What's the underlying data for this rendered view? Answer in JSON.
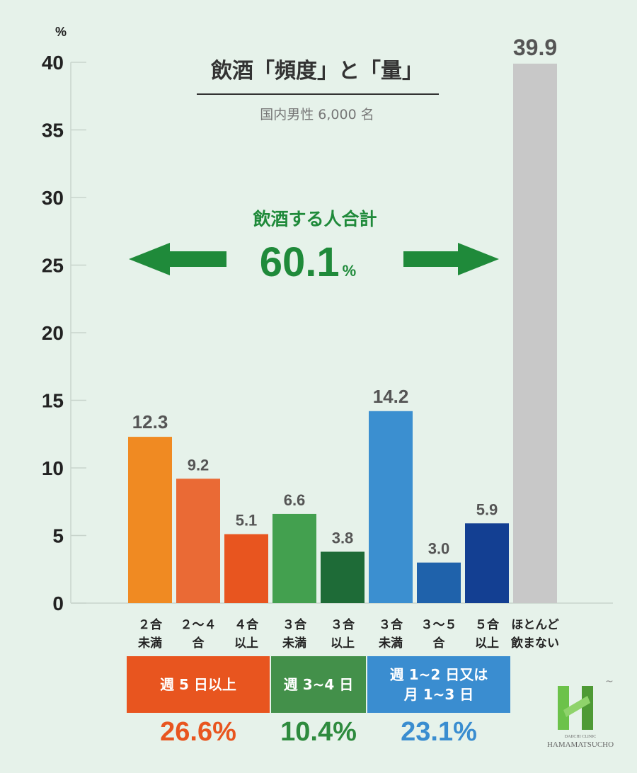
{
  "chart_data": {
    "type": "bar",
    "title": "飲酒「頻度」と「量」",
    "subtitle": "国内男性 6,000 名",
    "y_unit": "%",
    "ylim": [
      0,
      40
    ],
    "yticks": [
      0,
      5,
      10,
      15,
      20,
      25,
      30,
      35,
      40
    ],
    "grid": false,
    "categories": [
      [
        "２合",
        "未満"
      ],
      [
        "２〜４",
        "合"
      ],
      [
        "４合",
        "以上"
      ],
      [
        "３合",
        "未満"
      ],
      [
        "３合",
        "以上"
      ],
      [
        "３合",
        "未満"
      ],
      [
        "３〜５",
        "合"
      ],
      [
        "５合",
        "以上"
      ],
      [
        "ほとんど",
        "飲まない"
      ]
    ],
    "values": [
      12.3,
      9.2,
      5.1,
      6.6,
      3.8,
      14.2,
      3.0,
      5.9,
      39.9
    ],
    "value_labels": [
      "12.3",
      "9.2",
      "5.1",
      "6.6",
      "3.8",
      "14.2",
      "3.0",
      "5.9",
      "39.9"
    ],
    "bar_colors": [
      "#f08a22",
      "#ea6a35",
      "#e8551f",
      "#43a04f",
      "#1e6b37",
      "#3b8fd0",
      "#1f62ab",
      "#133f92",
      "#c8c8c8"
    ],
    "drinkers_total": {
      "label": "飲酒する人合計",
      "value": "60.1",
      "unit": "%",
      "color": "#1f8a3a"
    },
    "groups": [
      {
        "label_lines": [
          "週 5 日以上"
        ],
        "total": "26.6%",
        "color": "#e8551f",
        "text_color": "#e8551f",
        "bars": [
          0,
          2
        ]
      },
      {
        "label_lines": [
          "週 3~4 日"
        ],
        "total": "10.4%",
        "color": "#43904a",
        "text_color": "#2e8b3e",
        "bars": [
          3,
          4
        ]
      },
      {
        "label_lines": [
          "週 1~2 日又は",
          "月 1~3 日"
        ],
        "total": "23.1%",
        "color": "#3a8dd0",
        "text_color": "#3a8dd0",
        "bars": [
          5,
          7
        ]
      }
    ]
  },
  "logo": {
    "text_top": "DAIICHI CLINIC",
    "text_bottom": "HAMAMATSUCHO",
    "color": "#6cc24a"
  }
}
